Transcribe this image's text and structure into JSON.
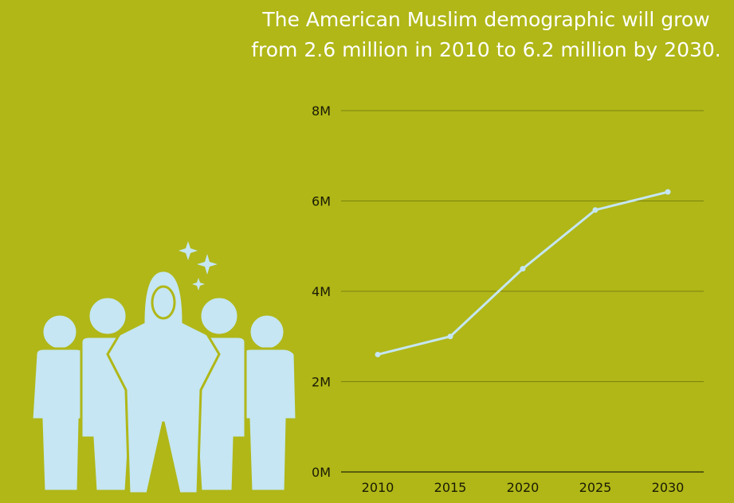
{
  "title_lines": [
    "The American Muslim demographic will grow",
    "from 2.6 million in 2010 to 6.2 million by 2030."
  ],
  "illustration": {
    "icon": "group-of-people-with-hijab-woman-and-sparkles-icon",
    "color": "#c5e6f2"
  },
  "colors": {
    "background": "#b0b717",
    "line": "#c5e6f2",
    "grid": "#7c820f",
    "baseline": "#3c3e08",
    "title": "#ffffff"
  },
  "chart_data": {
    "type": "line",
    "title": "The American Muslim demographic will grow from 2.6 million in 2010 to 6.2 million by 2030.",
    "xlabel": "",
    "ylabel": "",
    "categories": [
      "2010",
      "2015",
      "2020",
      "2025",
      "2030"
    ],
    "values": [
      2.6,
      3.0,
      4.5,
      5.8,
      6.2
    ],
    "ylim": [
      0,
      8
    ],
    "yticks": [
      0,
      2,
      4,
      6,
      8
    ],
    "ytick_labels": [
      "0M",
      "2M",
      "4M",
      "6M",
      "8M"
    ],
    "grid": true,
    "legend": "none"
  }
}
